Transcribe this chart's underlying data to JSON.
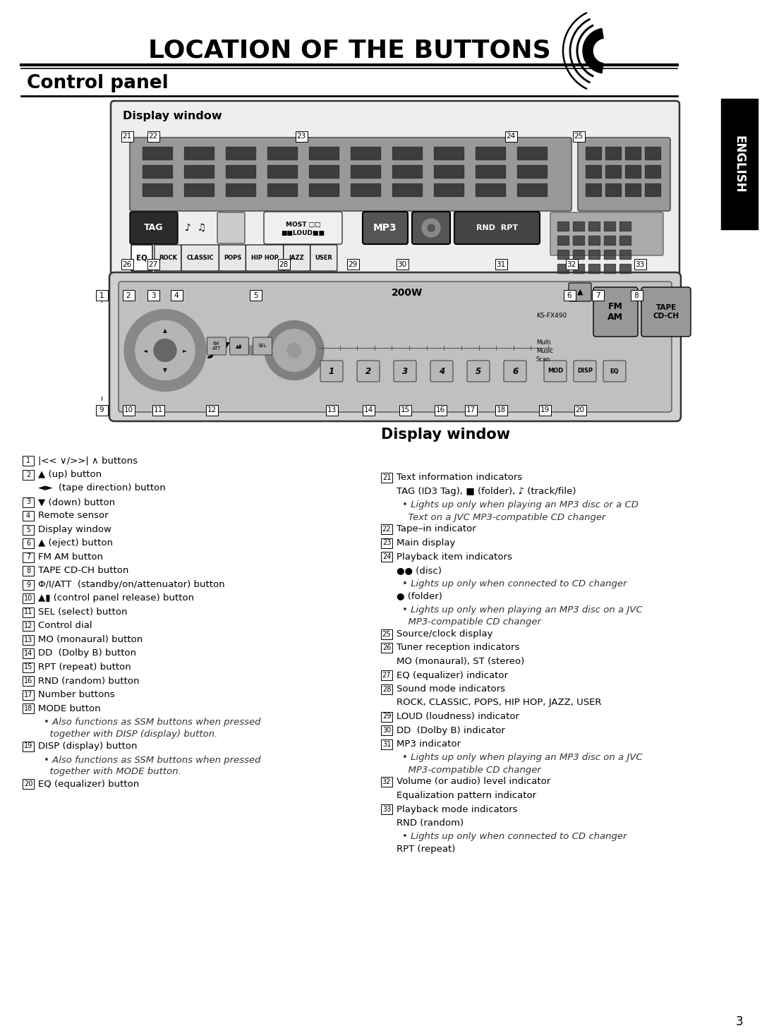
{
  "title": "LOCATION OF THE BUTTONS",
  "subtitle": "Control panel",
  "display_window_label": "Display window",
  "display_window_label2": "Display window",
  "bg_color": "#ffffff",
  "english_tab_text": "ENGLISH",
  "left_items": [
    {
      "num": "1",
      "text": "|<< ∨/>>| ∧ buttons",
      "indent": 0
    },
    {
      "num": "2",
      "text": "▲ (up) button",
      "indent": 0
    },
    {
      "num": "",
      "text": "◄►  (tape direction) button",
      "indent": 1
    },
    {
      "num": "3",
      "text": "▼ (down) button",
      "indent": 0
    },
    {
      "num": "4",
      "text": "Remote sensor",
      "indent": 0
    },
    {
      "num": "5",
      "text": "Display window",
      "indent": 0
    },
    {
      "num": "6",
      "text": "▲ (eject) button",
      "indent": 0
    },
    {
      "num": "7",
      "text": "FM AM button",
      "indent": 0
    },
    {
      "num": "8",
      "text": "TAPE CD-CH button",
      "indent": 0
    },
    {
      "num": "9",
      "text": "Φ/I/ATT  (standby/on/attenuator) button",
      "indent": 0
    },
    {
      "num": "10",
      "text": "▲▮ (control panel release) button",
      "indent": 0
    },
    {
      "num": "11",
      "text": "SEL (select) button",
      "indent": 0
    },
    {
      "num": "12",
      "text": "Control dial",
      "indent": 0
    },
    {
      "num": "13",
      "text": "MO (monaural) button",
      "indent": 0
    },
    {
      "num": "14",
      "text": "DD  (Dolby B) button",
      "indent": 0
    },
    {
      "num": "15",
      "text": "RPT (repeat) button",
      "indent": 0
    },
    {
      "num": "16",
      "text": "RND (random) button",
      "indent": 0
    },
    {
      "num": "17",
      "text": "Number buttons",
      "indent": 0
    },
    {
      "num": "18",
      "text": "MODE button",
      "indent": 0
    },
    {
      "num": "",
      "text": "• Also functions as SSM buttons when pressed",
      "indent": 2,
      "italic": true
    },
    {
      "num": "",
      "text": "  together with DISP (display) button.",
      "indent": 2,
      "italic": true
    },
    {
      "num": "19",
      "text": "DISP (display) button",
      "indent": 0
    },
    {
      "num": "",
      "text": "• Also functions as SSM buttons when pressed",
      "indent": 2,
      "italic": true
    },
    {
      "num": "",
      "text": "  together with MODE button.",
      "indent": 2,
      "italic": true
    },
    {
      "num": "20",
      "text": "EQ (equalizer) button",
      "indent": 0
    }
  ],
  "right_items": [
    {
      "num": "21",
      "text": "Text information indicators",
      "indent": 0
    },
    {
      "num": "",
      "text": "TAG (ID3 Tag), ■ (folder), ♪ (track/file)",
      "indent": 1
    },
    {
      "num": "",
      "text": "• Lights up only when playing an MP3 disc or a CD",
      "indent": 2,
      "italic": true
    },
    {
      "num": "",
      "text": "  Text on a JVC MP3-compatible CD changer",
      "indent": 2,
      "italic": true
    },
    {
      "num": "22",
      "text": "Tape–in indicator",
      "indent": 0
    },
    {
      "num": "23",
      "text": "Main display",
      "indent": 0
    },
    {
      "num": "24",
      "text": "Playback item indicators",
      "indent": 0
    },
    {
      "num": "",
      "text": "●● (disc)",
      "indent": 1
    },
    {
      "num": "",
      "text": "• Lights up only when connected to CD changer",
      "indent": 2,
      "italic": true
    },
    {
      "num": "",
      "text": "● (folder)",
      "indent": 1
    },
    {
      "num": "",
      "text": "• Lights up only when playing an MP3 disc on a JVC",
      "indent": 2,
      "italic": true
    },
    {
      "num": "",
      "text": "  MP3-compatible CD changer",
      "indent": 2,
      "italic": true
    },
    {
      "num": "25",
      "text": "Source/clock display",
      "indent": 0
    },
    {
      "num": "26",
      "text": "Tuner reception indicators",
      "indent": 0
    },
    {
      "num": "",
      "text": "MO (monaural), ST (stereo)",
      "indent": 1
    },
    {
      "num": "27",
      "text": "EQ (equalizer) indicator",
      "indent": 0
    },
    {
      "num": "28",
      "text": "Sound mode indicators",
      "indent": 0
    },
    {
      "num": "",
      "text": "ROCK, CLASSIC, POPS, HIP HOP, JAZZ, USER",
      "indent": 1
    },
    {
      "num": "29",
      "text": "LOUD (loudness) indicator",
      "indent": 0
    },
    {
      "num": "30",
      "text": "DD  (Dolby B) indicator",
      "indent": 0
    },
    {
      "num": "31",
      "text": "MP3 indicator",
      "indent": 0
    },
    {
      "num": "",
      "text": "• Lights up only when playing an MP3 disc on a JVC",
      "indent": 2,
      "italic": true
    },
    {
      "num": "",
      "text": "  MP3-compatible CD changer",
      "indent": 2,
      "italic": true
    },
    {
      "num": "32",
      "text": "Volume (or audio) level indicator",
      "indent": 0
    },
    {
      "num": "",
      "text": "Equalization pattern indicator",
      "indent": 1
    },
    {
      "num": "33",
      "text": "Playback mode indicators",
      "indent": 0
    },
    {
      "num": "",
      "text": "RND (random)",
      "indent": 1
    },
    {
      "num": "",
      "text": "• Lights up only when connected to CD changer",
      "indent": 2,
      "italic": true
    },
    {
      "num": "",
      "text": "RPT (repeat)",
      "indent": 1
    }
  ],
  "page_number": "3"
}
